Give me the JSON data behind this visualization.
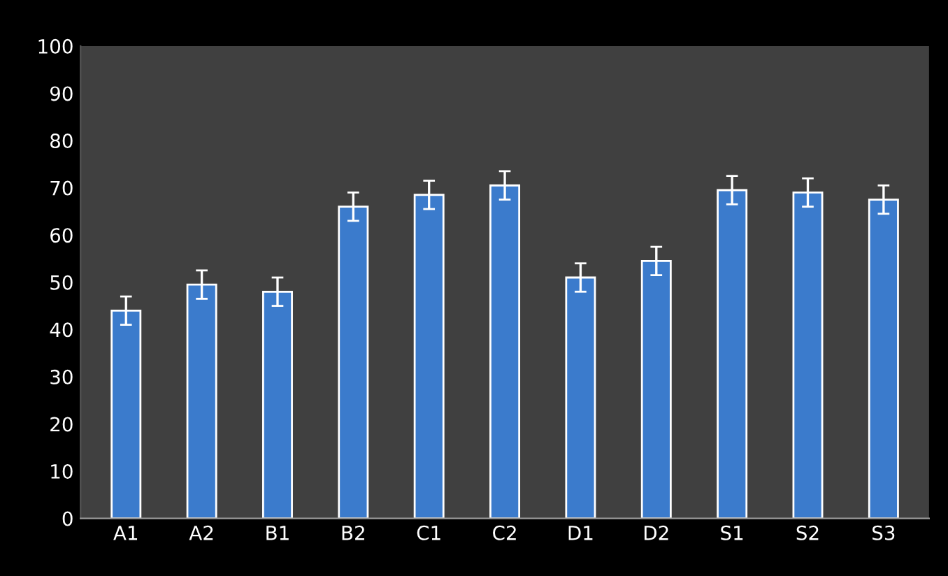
{
  "chart_data": {
    "type": "bar",
    "categories": [
      "A1",
      "A2",
      "B1",
      "B2",
      "C1",
      "C2",
      "D1",
      "D2",
      "S1",
      "S2",
      "S3"
    ],
    "values": [
      44,
      49.5,
      48,
      66,
      68.5,
      70.5,
      51,
      54.5,
      69.5,
      69,
      67.5
    ],
    "errors": [
      3,
      3,
      3,
      3,
      3,
      3,
      3,
      3,
      3,
      3,
      3
    ],
    "color": "#3b7bcc",
    "ylim": [
      0,
      100
    ],
    "yticks": [
      0,
      10,
      20,
      30,
      40,
      50,
      60,
      70,
      80,
      90,
      100
    ],
    "grid": false,
    "legend": false
  }
}
